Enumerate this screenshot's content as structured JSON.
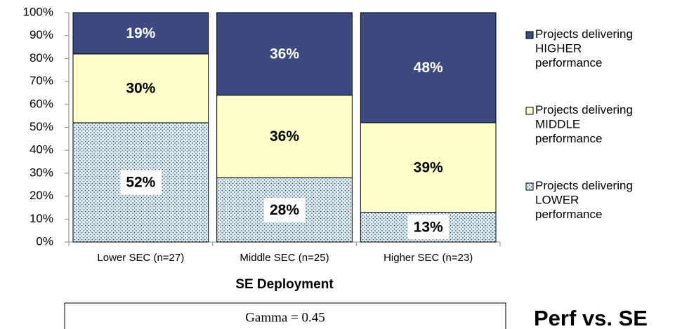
{
  "chart_data": {
    "type": "stacked_bar",
    "x_label": "SE Deployment",
    "categories": [
      "Lower SEC (n=27)",
      "Middle SEC (n=25)",
      "Higher SEC (n=23)"
    ],
    "series": [
      {
        "name": "Projects delivering LOWER performance",
        "color": "#dbeef8",
        "pattern": "dots",
        "values": [
          52,
          28,
          13
        ],
        "value_labels": [
          "52%",
          "28%",
          "13%"
        ]
      },
      {
        "name": "Projects delivering MIDDLE performance",
        "color": "#ffffcc",
        "values": [
          30,
          36,
          39
        ],
        "value_labels": [
          "30%",
          "36%",
          "39%"
        ]
      },
      {
        "name": "Projects delivering HIGHER performance",
        "color": "#3b4a7e",
        "values": [
          19,
          36,
          48
        ],
        "value_labels": [
          "19%",
          "36%",
          "48%"
        ]
      }
    ],
    "ylim": [
      0,
      100
    ],
    "yticks": [
      {
        "value": 0,
        "label": "0%"
      },
      {
        "value": 10,
        "label": "10%"
      },
      {
        "value": 20,
        "label": "20%"
      },
      {
        "value": 30,
        "label": "30%"
      },
      {
        "value": 40,
        "label": "40%"
      },
      {
        "value": 50,
        "label": "50%"
      },
      {
        "value": 60,
        "label": "60%"
      },
      {
        "value": 70,
        "label": "70%"
      },
      {
        "value": 80,
        "label": "80%"
      },
      {
        "value": 90,
        "label": "90%"
      },
      {
        "value": 100,
        "label": "100%"
      }
    ],
    "legend": "right",
    "annotations": [
      "Gamma = 0.45",
      "Perf vs. SE"
    ]
  }
}
